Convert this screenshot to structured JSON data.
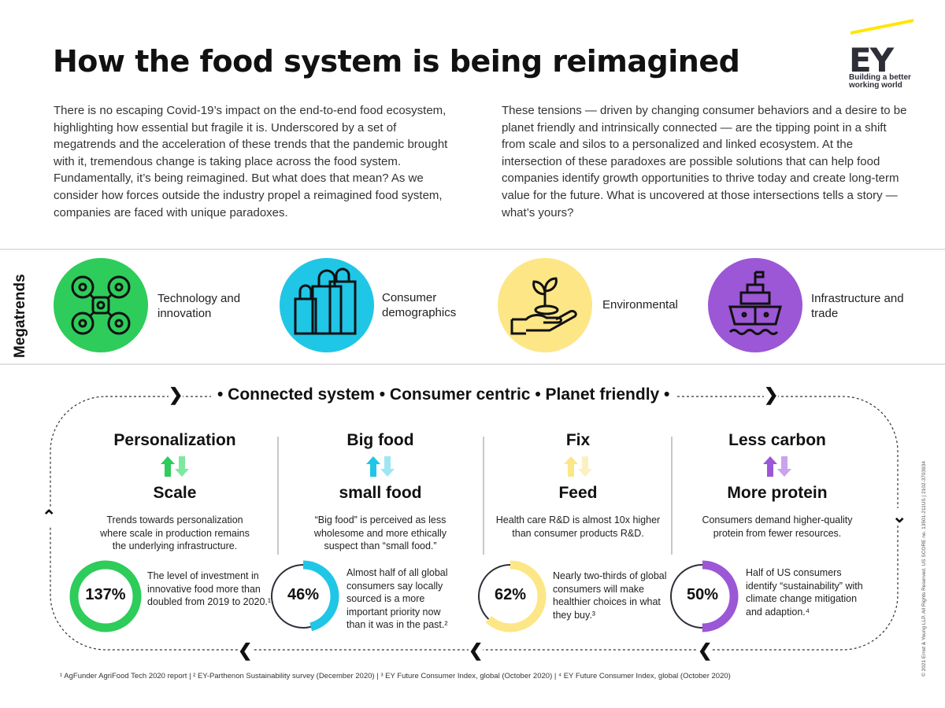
{
  "title": "How the food system is being reimagined",
  "brand": {
    "name": "EY",
    "tagline": "Building a better working world",
    "accent_color": "#ffe600"
  },
  "intro": {
    "left": "There is no escaping Covid-19’s impact on the end-to-end food ecosystem, highlighting how essential but fragile it is. Underscored by a set of megatrends and the acceleration of these trends that the pandemic brought with it, tremendous change is taking place across the food system. Fundamentally, it’s being reimagined. But what does that mean? As we consider how forces outside the industry propel a reimagined food system, companies are faced with unique paradoxes.",
    "right": "These tensions — driven by changing consumer behaviors and a desire to be planet friendly and intrinsically connected — are the tipping point in a shift from scale and silos to a personalized and linked ecosystem. At the intersection of these paradoxes are possible solutions that can help food companies identify growth opportunities to thrive today and create long-term value for the future. What is uncovered at those intersections tells a story — what’s yours?"
  },
  "megatrends": {
    "label": "Megatrends",
    "items": [
      {
        "label": "Technology and innovation",
        "icon": "drone-icon",
        "color": "#2ecc5a"
      },
      {
        "label": "Consumer demographics",
        "icon": "shopping-bags-icon",
        "color": "#1fc6e6"
      },
      {
        "label": "Environmental",
        "icon": "plant-in-hand-icon",
        "color": "#fde686"
      },
      {
        "label": "Infrastructure and trade",
        "icon": "cargo-ship-icon",
        "color": "#9b57d6"
      }
    ]
  },
  "tagline": "• Connected system • Consumer centric • Planet friendly •",
  "paradoxes": [
    {
      "top": "Personalization",
      "bottom": "Scale",
      "description": "Trends towards personalization where scale in production remains the underlying infrastructure.",
      "percent": "137%",
      "fraction": 1.0,
      "stat": "The level of investment in innovative food more than doubled from 2019 to 2020.¹",
      "color": "#2ecc5a",
      "color_light": "#7ee8a0"
    },
    {
      "top": "Big food",
      "bottom": "small food",
      "description": "“Big food” is perceived as less wholesome and more ethically suspect than “small food.”",
      "percent": "46%",
      "fraction": 0.46,
      "stat": "Almost half of all global consumers say locally sourced is a more important priority now than it was in the past.²",
      "color": "#1fc6e6",
      "color_light": "#9fe6f3"
    },
    {
      "top": "Fix",
      "bottom": "Feed",
      "description": "Health care R&D is almost 10x higher than consumer products R&D.",
      "percent": "62%",
      "fraction": 0.62,
      "stat": "Nearly two-thirds of global consumers will make healthier choices in what they buy.³",
      "color": "#fde686",
      "color_light": "#fdf0c0"
    },
    {
      "top": "Less carbon",
      "bottom": "More protein",
      "description": "Consumers demand higher-quality protein from fewer resources.",
      "percent": "50%",
      "fraction": 0.5,
      "stat": "Half of US consumers identify “sustainability” with climate change mitigation and adaption.⁴",
      "color": "#9b57d6",
      "color_light": "#c9a3ec"
    }
  ],
  "footnote": "¹ AgFunder AgriFood Tech 2020 report | ² EY-Parthenon Sustainability survey (December 2020) | ³ EY Future Consumer Index, global (October 2020) | ⁴ EY Future Consumer Index, global (October 2020)",
  "side_text": "© 2021 Ernst & Young LLP. All Rights Reserved. US SCORE no. 13501-211US | 2102-3703934"
}
